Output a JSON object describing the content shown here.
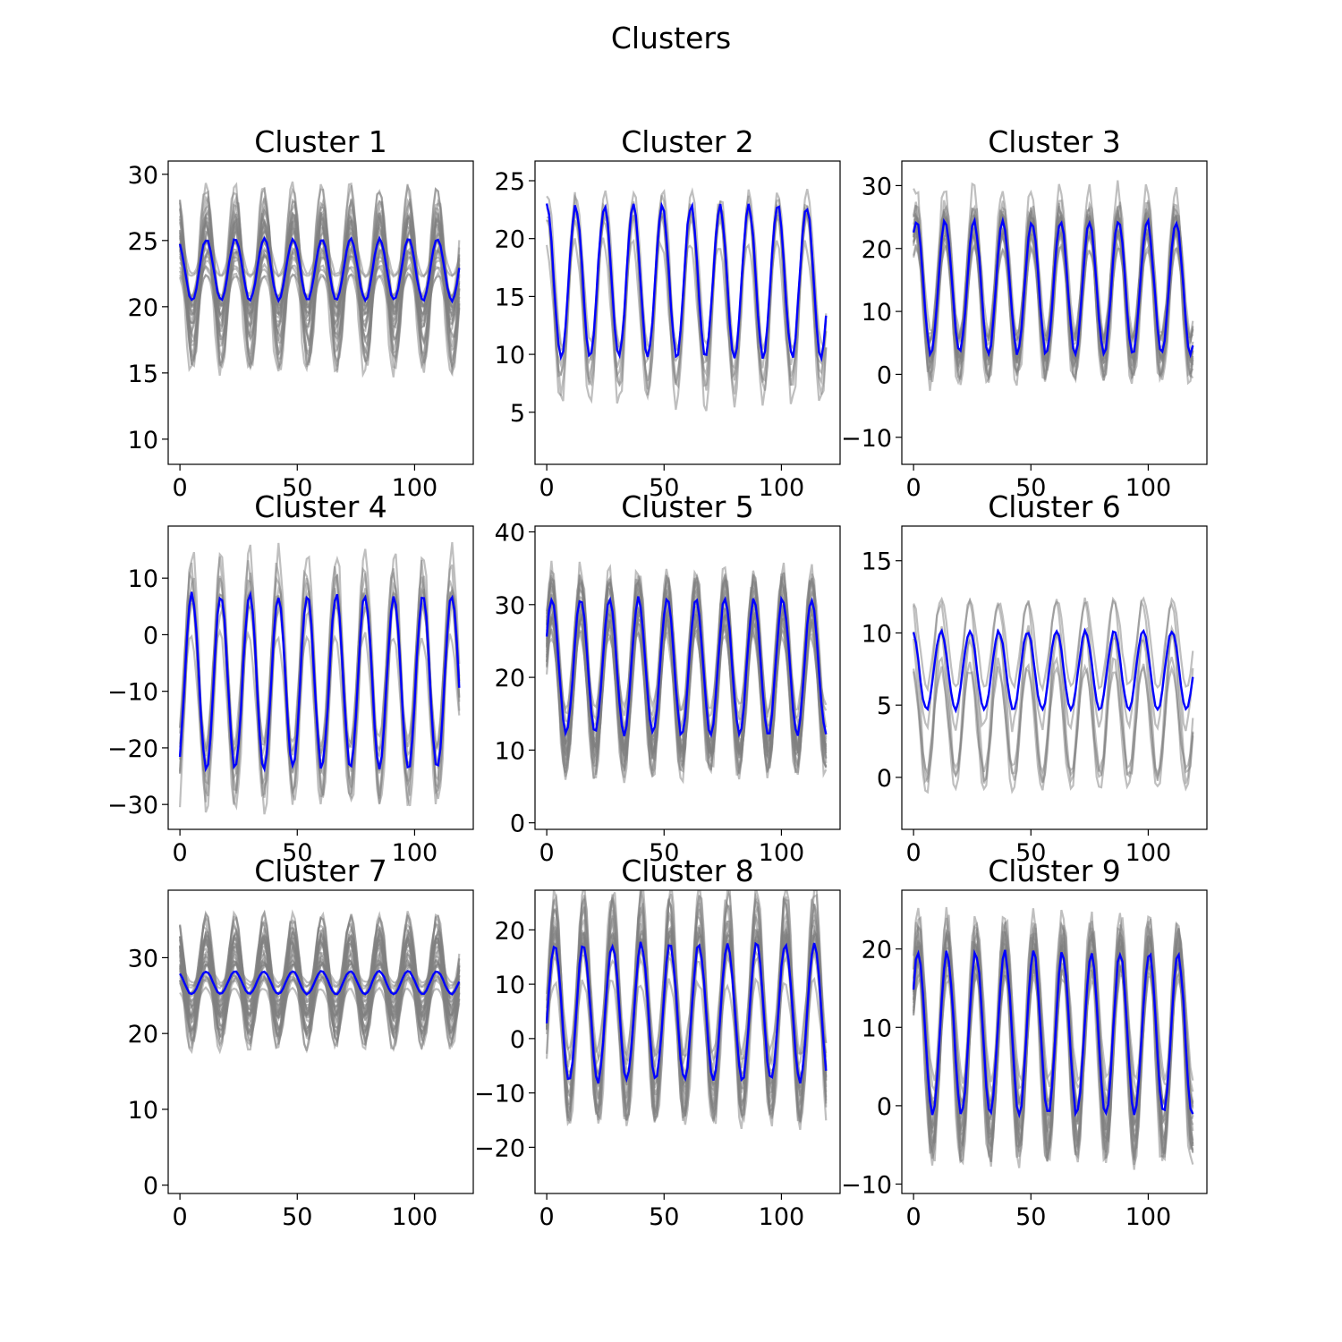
{
  "figure_title": "Clusters",
  "colors": {
    "member_lines": "#808080",
    "mean_line": "#0000ff",
    "axes": "#000000"
  },
  "chart_data": [
    {
      "type": "line",
      "title": "Cluster 1",
      "n_points": 120,
      "xlim": [
        -5,
        125
      ],
      "ylim": [
        8.1,
        31.0
      ],
      "xticks": [
        0,
        50,
        100
      ],
      "xticklabels": [
        "0",
        "50",
        "100"
      ],
      "yticks": [
        10,
        15,
        20,
        25,
        30
      ],
      "yticklabels": [
        "10",
        "15",
        "20",
        "25",
        "30"
      ],
      "period": 12.3,
      "series": [
        {
          "role": "mean",
          "center": 22.8,
          "amplitude": 2.3,
          "phase": 0.5
        },
        {
          "role": "members",
          "count": 30,
          "center_range": [
            20.5,
            24.0
          ],
          "amplitude_range": [
            0.5,
            6.0
          ]
        }
      ]
    },
    {
      "type": "line",
      "title": "Cluster 2",
      "n_points": 120,
      "xlim": [
        -5,
        125
      ],
      "ylim": [
        0.5,
        26.7
      ],
      "xticks": [
        0,
        50,
        100
      ],
      "xticklabels": [
        "0",
        "50",
        "100"
      ],
      "yticks": [
        5,
        10,
        15,
        20,
        25
      ],
      "yticklabels": [
        "5",
        "10",
        "15",
        "20",
        "25"
      ],
      "period": 12.3,
      "series": [
        {
          "role": "mean",
          "center": 16.3,
          "amplitude": 6.5,
          "phase": 0.0
        },
        {
          "role": "members",
          "count": 7,
          "center_range": [
            14.0,
            18.0
          ],
          "amplitude_range": [
            5.0,
            9.0
          ]
        }
      ]
    },
    {
      "type": "line",
      "title": "Cluster 3",
      "n_points": 120,
      "xlim": [
        -5,
        125
      ],
      "ylim": [
        -14.3,
        33.9
      ],
      "xticks": [
        0,
        50,
        100
      ],
      "xticklabels": [
        "0",
        "50",
        "100"
      ],
      "yticks": [
        -10,
        0,
        10,
        20,
        30
      ],
      "yticklabels": [
        "−10",
        "0",
        "10",
        "20",
        "30"
      ],
      "period": 12.3,
      "series": [
        {
          "role": "mean",
          "center": 13.8,
          "amplitude": 10.5,
          "phase": -0.6
        },
        {
          "role": "members",
          "count": 20,
          "center_range": [
            11.0,
            16.0
          ],
          "amplitude_range": [
            8.0,
            14.5
          ]
        }
      ]
    },
    {
      "type": "line",
      "title": "Cluster 4",
      "n_points": 120,
      "xlim": [
        -5,
        125
      ],
      "ylim": [
        -34.4,
        19.2
      ],
      "xticks": [
        0,
        50,
        100
      ],
      "xticklabels": [
        "0",
        "50",
        "100"
      ],
      "yticks": [
        -30,
        -20,
        -10,
        0,
        10
      ],
      "yticklabels": [
        "−30",
        "−20",
        "−10",
        "0",
        "10"
      ],
      "period": 12.3,
      "series": [
        {
          "role": "mean",
          "center": -8.3,
          "amplitude": 15.3,
          "phase": -2.6
        },
        {
          "role": "members",
          "count": 10,
          "center_range": [
            -12.0,
            -4.0
          ],
          "amplitude_range": [
            10.0,
            22.0
          ]
        }
      ]
    },
    {
      "type": "line",
      "title": "Cluster 5",
      "n_points": 120,
      "xlim": [
        -5,
        125
      ],
      "ylim": [
        -0.9,
        40.8
      ],
      "xticks": [
        0,
        50,
        100
      ],
      "xticklabels": [
        "0",
        "50",
        "100"
      ],
      "yticks": [
        0,
        10,
        20,
        30,
        40
      ],
      "yticklabels": [
        "0",
        "10",
        "20",
        "30",
        "40"
      ],
      "period": 12.3,
      "series": [
        {
          "role": "mean",
          "center": 21.5,
          "amplitude": 9.3,
          "phase": -1.1
        },
        {
          "role": "members",
          "count": 25,
          "center_range": [
            18.0,
            24.0
          ],
          "amplitude_range": [
            7.0,
            14.0
          ]
        }
      ]
    },
    {
      "type": "line",
      "title": "Cluster 6",
      "n_points": 120,
      "xlim": [
        -5,
        125
      ],
      "ylim": [
        -3.6,
        17.4
      ],
      "xticks": [
        0,
        50,
        100
      ],
      "xticklabels": [
        "0",
        "50",
        "100"
      ],
      "yticks": [
        0,
        5,
        10,
        15
      ],
      "yticklabels": [
        "0",
        "5",
        "10",
        "15"
      ],
      "period": 12.3,
      "series": [
        {
          "role": "mean",
          "center": 7.4,
          "amplitude": 2.7,
          "phase": 0.3
        },
        {
          "role": "members",
          "count": 6,
          "center_range": [
            3.0,
            10.0
          ],
          "amplitude_range": [
            2.0,
            5.5
          ]
        }
      ]
    },
    {
      "type": "line",
      "title": "Cluster 7",
      "n_points": 120,
      "xlim": [
        -5,
        125
      ],
      "ylim": [
        -1.1,
        38.9
      ],
      "xticks": [
        0,
        50,
        100
      ],
      "xticklabels": [
        "0",
        "50",
        "100"
      ],
      "yticks": [
        0,
        10,
        20,
        30
      ],
      "yticklabels": [
        "0",
        "10",
        "20",
        "30"
      ],
      "period": 12.3,
      "series": [
        {
          "role": "mean",
          "center": 26.7,
          "amplitude": 1.5,
          "phase": 0.6
        },
        {
          "role": "members",
          "count": 35,
          "center_range": [
            24.0,
            29.0
          ],
          "amplitude_range": [
            1.0,
            7.5
          ]
        }
      ]
    },
    {
      "type": "line",
      "title": "Cluster 8",
      "n_points": 120,
      "xlim": [
        -5,
        125
      ],
      "ylim": [
        -28.5,
        27.3
      ],
      "xticks": [
        0,
        50,
        100
      ],
      "xticklabels": [
        "0",
        "50",
        "100"
      ],
      "yticks": [
        -20,
        -10,
        0,
        10,
        20
      ],
      "yticklabels": [
        "−20",
        "−10",
        "0",
        "10",
        "20"
      ],
      "period": 12.3,
      "series": [
        {
          "role": "mean",
          "center": 4.8,
          "amplitude": 12.6,
          "phase": -1.7
        },
        {
          "role": "members",
          "count": 20,
          "center_range": [
            1.0,
            8.0
          ],
          "amplitude_range": [
            9.0,
            21.0
          ]
        }
      ]
    },
    {
      "type": "line",
      "title": "Cluster 9",
      "n_points": 120,
      "xlim": [
        -5,
        125
      ],
      "ylim": [
        -11.2,
        27.5
      ],
      "xticks": [
        0,
        50,
        100
      ],
      "xticklabels": [
        "0",
        "50",
        "100"
      ],
      "yticks": [
        -10,
        0,
        10,
        20
      ],
      "yticklabels": [
        "−10",
        "0",
        "10",
        "20"
      ],
      "period": 12.3,
      "series": [
        {
          "role": "mean",
          "center": 9.2,
          "amplitude": 10.3,
          "phase": -1.0
        },
        {
          "role": "members",
          "count": 22,
          "center_range": [
            6.0,
            12.0
          ],
          "amplitude_range": [
            8.0,
            15.0
          ]
        }
      ]
    }
  ]
}
